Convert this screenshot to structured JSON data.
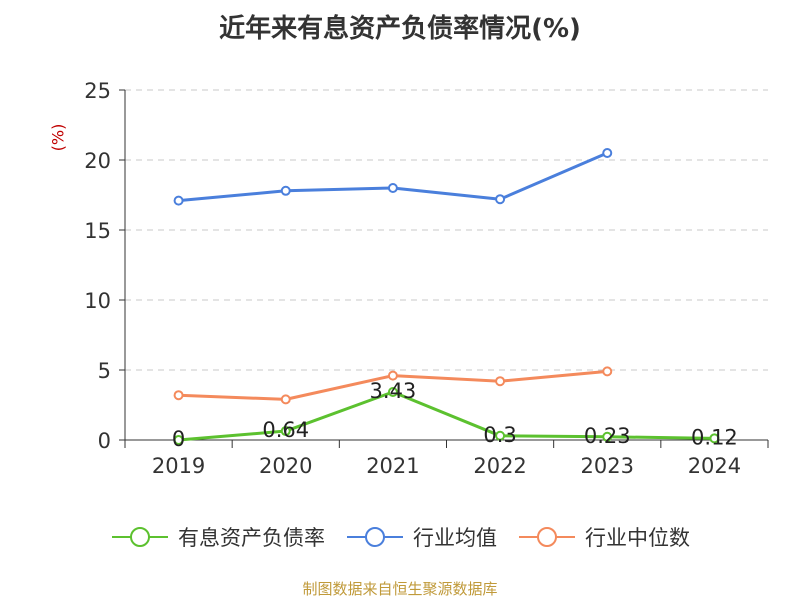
{
  "page": {
    "title": "近年来有息资产负债率情况(%)",
    "source": "制图数据来自恒生聚源数据库"
  },
  "chart_data": {
    "type": "line",
    "title": "近年来有息资产负债率情况(%)",
    "ylabel": "(%)",
    "xlabel": "",
    "categories": [
      "2019",
      "2020",
      "2021",
      "2022",
      "2023",
      "2024"
    ],
    "ylim": [
      0,
      25
    ],
    "yticks": [
      0,
      5,
      10,
      15,
      20,
      25
    ],
    "grid": true,
    "legend_position": "bottom",
    "series": [
      {
        "name": "有息资产负债率",
        "color": "#5cc12f",
        "values": [
          0,
          0.64,
          3.43,
          0.3,
          0.23,
          0.12
        ],
        "data_labels": [
          "0",
          "0.64",
          "3.43",
          "0.3",
          "0.23",
          "0.12"
        ]
      },
      {
        "name": "行业均值",
        "color": "#4a7fdc",
        "values": [
          17.1,
          17.8,
          18.0,
          17.2,
          20.5,
          null
        ]
      },
      {
        "name": "行业中位数",
        "color": "#f48a5c",
        "values": [
          3.2,
          2.9,
          4.6,
          4.2,
          4.9,
          null
        ]
      }
    ]
  }
}
